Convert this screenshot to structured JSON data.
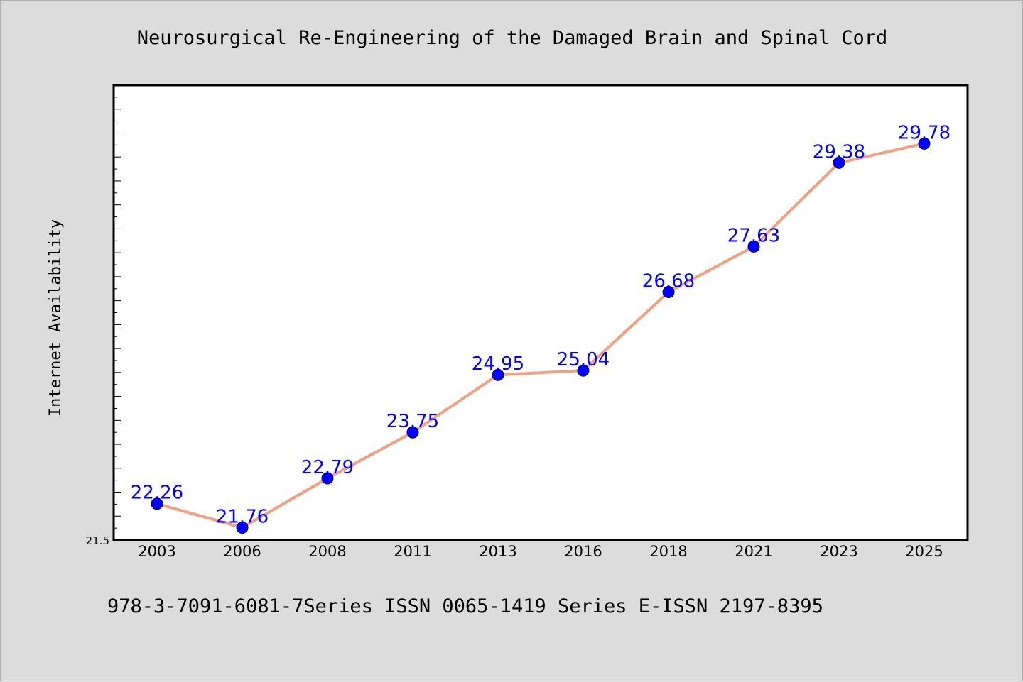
{
  "chart_data": {
    "type": "line",
    "title": "Neurosurgical Re-Engineering of the Damaged Brain and Spinal Cord",
    "xlabel": "",
    "ylabel": "Internet Availability",
    "categories": [
      "2003",
      "2006",
      "2008",
      "2011",
      "2013",
      "2016",
      "2018",
      "2021",
      "2023",
      "2025"
    ],
    "values": [
      22.26,
      21.76,
      22.79,
      23.75,
      24.95,
      25.04,
      26.68,
      27.63,
      29.38,
      29.78
    ],
    "value_labels": [
      "22.26",
      "21.76",
      "22.79",
      "23.75",
      "24.95",
      "25.04",
      "26.68",
      "27.63",
      "29.38",
      "29.78"
    ],
    "ylim": [
      21.5,
      31.0
    ],
    "ytick_label": "21.5",
    "grid": false,
    "line_color": "#f4a080",
    "marker_color": "#0000ff",
    "label_color": "#0000ff"
  },
  "footer": {
    "text": "978-3-7091-6081-7Series ISSN 0065-1419 Series E-ISSN 2197-8395"
  }
}
